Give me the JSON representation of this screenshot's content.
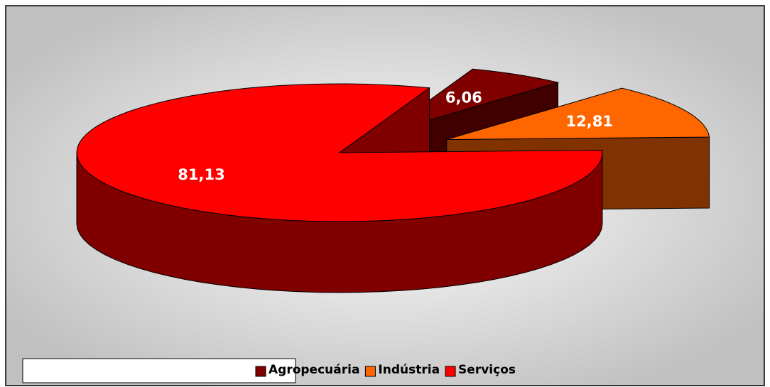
{
  "chart_data": {
    "type": "pie",
    "categories": [
      "Agropecuária",
      "Indústria",
      "Serviços"
    ],
    "values": [
      6.06,
      12.81,
      81.13
    ],
    "value_labels": [
      "6,06",
      "12,81",
      "81,13"
    ],
    "colors": [
      "#800000",
      "#ff6600",
      "#ff0000"
    ],
    "legend": "bottom"
  }
}
